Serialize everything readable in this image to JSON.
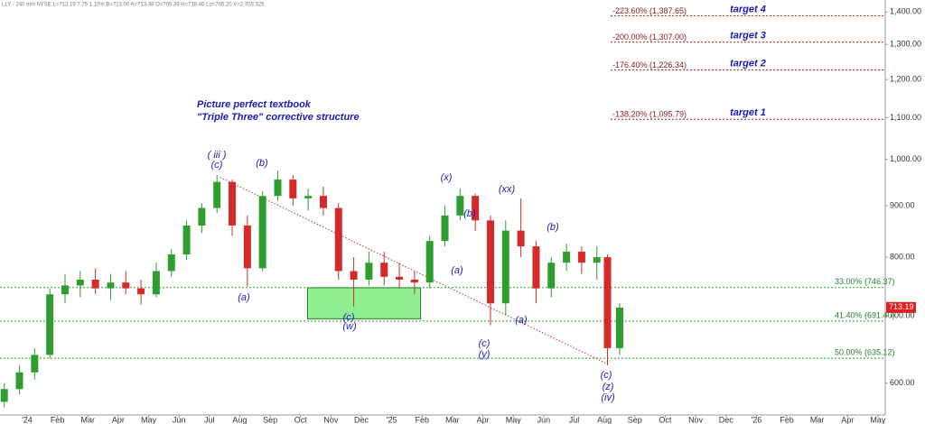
{
  "chart_data": {
    "type": "candlestick",
    "header": "LLY - 240 min NYSE  L=713.19 7.75 1.10%  B=713.00  A=713.38  O=705.39  H=718.40  Lo=705.20  V=2,703,325",
    "log_scale": true,
    "xlim": [
      -0.89,
      28.24
    ],
    "ylim": [
      558,
      1439
    ],
    "xticks": [
      {
        "value": 0,
        "label": "'24"
      },
      {
        "value": 1,
        "label": "Feb"
      },
      {
        "value": 2,
        "label": "Mar"
      },
      {
        "value": 3,
        "label": "Apr"
      },
      {
        "value": 4,
        "label": "May"
      },
      {
        "value": 5,
        "label": "Jun"
      },
      {
        "value": 6,
        "label": "Jul"
      },
      {
        "value": 7,
        "label": "Aug"
      },
      {
        "value": 8,
        "label": "Sep"
      },
      {
        "value": 9,
        "label": "Oct"
      },
      {
        "value": 10,
        "label": "Nov"
      },
      {
        "value": 11,
        "label": "Dec"
      },
      {
        "value": 12,
        "label": "'25"
      },
      {
        "value": 13,
        "label": "Feb"
      },
      {
        "value": 14,
        "label": "Mar"
      },
      {
        "value": 15,
        "label": "Apr"
      },
      {
        "value": 16,
        "label": "May"
      },
      {
        "value": 17,
        "label": "Jun"
      },
      {
        "value": 18,
        "label": "Jul"
      },
      {
        "value": 19,
        "label": "Aug"
      },
      {
        "value": 20,
        "label": "Sep"
      },
      {
        "value": 21,
        "label": "Oct"
      },
      {
        "value": 22,
        "label": "Nov"
      },
      {
        "value": 23,
        "label": "Dec"
      },
      {
        "value": 24,
        "label": "'26"
      },
      {
        "value": 25,
        "label": "Feb"
      },
      {
        "value": 26,
        "label": "Mar"
      },
      {
        "value": 27,
        "label": "Apr"
      },
      {
        "value": 28,
        "label": "May"
      }
    ],
    "yticks": [
      {
        "value": 600,
        "label": "600.00"
      },
      {
        "value": 700,
        "label": "700.00"
      },
      {
        "value": 800,
        "label": "800.00"
      },
      {
        "value": 900,
        "label": "900.00"
      },
      {
        "value": 1000,
        "label": "1,000.00"
      },
      {
        "value": 1100,
        "label": "1,100.00"
      },
      {
        "value": 1200,
        "label": "1,200.00"
      },
      {
        "value": 1300,
        "label": "1,300.00"
      },
      {
        "value": 1400,
        "label": "1,400.00"
      }
    ],
    "up_color": "#2e9e2e",
    "down_color": "#d42a2a",
    "x": [
      -0.75,
      -0.25,
      0.25,
      0.75,
      1.25,
      1.75,
      2.25,
      2.75,
      3.25,
      3.75,
      4.25,
      4.75,
      5.25,
      5.75,
      6.25,
      6.75,
      7.25,
      7.75,
      8.25,
      8.75,
      9.25,
      9.75,
      10.25,
      10.75,
      11.25,
      11.75,
      12.25,
      12.75,
      13.25,
      13.75,
      14.25,
      14.75,
      15.25,
      15.75,
      16.25,
      16.75,
      17.25,
      17.75,
      18.25,
      18.75,
      19.1,
      19.5
    ],
    "open": [
      575,
      592,
      615,
      640,
      735,
      750,
      760,
      745,
      755,
      745,
      735,
      775,
      805,
      860,
      895,
      950,
      860,
      780,
      920,
      955,
      915,
      920,
      895,
      775,
      760,
      790,
      765,
      760,
      755,
      830,
      880,
      920,
      870,
      720,
      850,
      820,
      745,
      790,
      810,
      790,
      800,
      650
    ],
    "high": [
      600,
      625,
      650,
      745,
      770,
      775,
      780,
      770,
      775,
      760,
      790,
      815,
      870,
      905,
      965,
      955,
      880,
      930,
      975,
      965,
      935,
      940,
      905,
      800,
      810,
      810,
      790,
      775,
      840,
      900,
      935,
      925,
      880,
      870,
      915,
      830,
      800,
      825,
      820,
      820,
      805,
      720
    ],
    "low": [
      568,
      585,
      605,
      635,
      720,
      730,
      735,
      725,
      735,
      718,
      730,
      765,
      795,
      845,
      885,
      840,
      748,
      775,
      910,
      900,
      890,
      880,
      760,
      715,
      750,
      750,
      745,
      735,
      745,
      820,
      870,
      850,
      685,
      700,
      800,
      720,
      730,
      775,
      770,
      760,
      625,
      640
    ],
    "close": [
      592,
      615,
      640,
      735,
      750,
      760,
      745,
      755,
      745,
      735,
      775,
      805,
      860,
      895,
      950,
      860,
      780,
      920,
      955,
      915,
      920,
      895,
      775,
      760,
      790,
      765,
      760,
      755,
      830,
      880,
      920,
      870,
      720,
      850,
      820,
      745,
      790,
      810,
      790,
      800,
      650,
      713
    ],
    "last_price": 713.19,
    "target_levels": [
      {
        "value": 1387.65,
        "label": "-223.60% (1,387.65)",
        "target": "target 4"
      },
      {
        "value": 1307.0,
        "label": "-200.00% (1,307.00)",
        "target": "target 3"
      },
      {
        "value": 1226.34,
        "label": "-176.40% (1,226.34)",
        "target": "target 2"
      },
      {
        "value": 1095.79,
        "label": "-138.20% (1,095.79)",
        "target": "target 1"
      }
    ],
    "retracement_levels": [
      {
        "value": 746.37,
        "label": "33.00% (746.37)"
      },
      {
        "value": 691.4,
        "label": "41.40% (691.40)"
      },
      {
        "value": 635.12,
        "label": "50.00% (635.12)"
      }
    ],
    "zone": {
      "x": [
        9.23,
        12.95
      ],
      "y": [
        695,
        746
      ]
    },
    "trendline": {
      "x": [
        6.35,
        19.05
      ],
      "y": [
        960,
        628
      ]
    },
    "note": [
      "Picture perfect textbook",
      "\"Triple Three\" corrective structure"
    ],
    "wave_labels": [
      "( iii )",
      "(c)",
      "(b)",
      "(a)",
      "(c)",
      "(w)",
      "(x)",
      "(b)",
      "(a)",
      "(xx)",
      "(c)",
      "(y)",
      "(a)",
      "(b)",
      "(c)",
      "(z)",
      "(iv)"
    ]
  }
}
